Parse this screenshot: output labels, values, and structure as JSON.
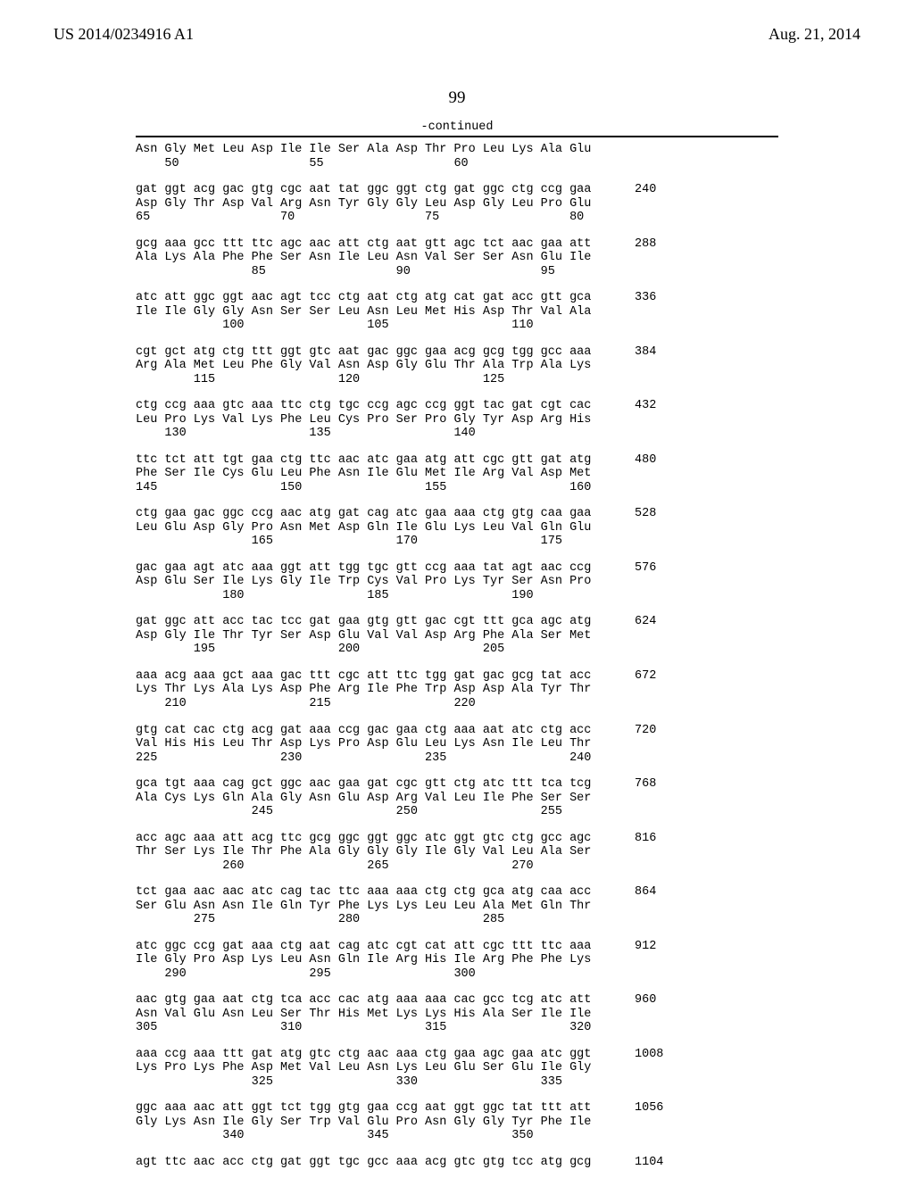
{
  "header": {
    "pub_number": "US 2014/0234916 A1",
    "pub_date": "Aug. 21, 2014"
  },
  "page_number": "99",
  "continued_label": "-continued",
  "blocks": [
    {
      "line1": "Asn Gly Met Leu Asp Ile Ile Ser Ala Asp Thr Pro Leu Lys Ala Glu",
      "line2": "    50                  55                  60",
      "end": ""
    },
    {
      "line1": "gat ggt acg gac gtg cgc aat tat ggc ggt ctg gat ggc ctg ccg gaa",
      "line2": "Asp Gly Thr Asp Val Arg Asn Tyr Gly Gly Leu Asp Gly Leu Pro Glu",
      "line3": "65                  70                  75                  80",
      "end": "240"
    },
    {
      "line1": "gcg aaa gcc ttt ttc agc aac att ctg aat gtt agc tct aac gaa att",
      "line2": "Ala Lys Ala Phe Phe Ser Asn Ile Leu Asn Val Ser Ser Asn Glu Ile",
      "line3": "                85                  90                  95",
      "end": "288"
    },
    {
      "line1": "atc att ggc ggt aac agt tcc ctg aat ctg atg cat gat acc gtt gca",
      "line2": "Ile Ile Gly Gly Asn Ser Ser Leu Asn Leu Met His Asp Thr Val Ala",
      "line3": "            100                 105                 110",
      "end": "336"
    },
    {
      "line1": "cgt gct atg ctg ttt ggt gtc aat gac ggc gaa acg gcg tgg gcc aaa",
      "line2": "Arg Ala Met Leu Phe Gly Val Asn Asp Gly Glu Thr Ala Trp Ala Lys",
      "line3": "        115                 120                 125",
      "end": "384"
    },
    {
      "line1": "ctg ccg aaa gtc aaa ttc ctg tgc ccg agc ccg ggt tac gat cgt cac",
      "line2": "Leu Pro Lys Val Lys Phe Leu Cys Pro Ser Pro Gly Tyr Asp Arg His",
      "line3": "    130                 135                 140",
      "end": "432"
    },
    {
      "line1": "ttc tct att tgt gaa ctg ttc aac atc gaa atg att cgc gtt gat atg",
      "line2": "Phe Ser Ile Cys Glu Leu Phe Asn Ile Glu Met Ile Arg Val Asp Met",
      "line3": "145                 150                 155                 160",
      "end": "480"
    },
    {
      "line1": "ctg gaa gac ggc ccg aac atg gat cag atc gaa aaa ctg gtg caa gaa",
      "line2": "Leu Glu Asp Gly Pro Asn Met Asp Gln Ile Glu Lys Leu Val Gln Glu",
      "line3": "                165                 170                 175",
      "end": "528"
    },
    {
      "line1": "gac gaa agt atc aaa ggt att tgg tgc gtt ccg aaa tat agt aac ccg",
      "line2": "Asp Glu Ser Ile Lys Gly Ile Trp Cys Val Pro Lys Tyr Ser Asn Pro",
      "line3": "            180                 185                 190",
      "end": "576"
    },
    {
      "line1": "gat ggc att acc tac tcc gat gaa gtg gtt gac cgt ttt gca agc atg",
      "line2": "Asp Gly Ile Thr Tyr Ser Asp Glu Val Val Asp Arg Phe Ala Ser Met",
      "line3": "        195                 200                 205",
      "end": "624"
    },
    {
      "line1": "aaa acg aaa gct aaa gac ttt cgc att ttc tgg gat gac gcg tat acc",
      "line2": "Lys Thr Lys Ala Lys Asp Phe Arg Ile Phe Trp Asp Asp Ala Tyr Thr",
      "line3": "    210                 215                 220",
      "end": "672"
    },
    {
      "line1": "gtg cat cac ctg acg gat aaa ccg gac gaa ctg aaa aat atc ctg acc",
      "line2": "Val His His Leu Thr Asp Lys Pro Asp Glu Leu Lys Asn Ile Leu Thr",
      "line3": "225                 230                 235                 240",
      "end": "720"
    },
    {
      "line1": "gca tgt aaa cag gct ggc aac gaa gat cgc gtt ctg atc ttt tca tcg",
      "line2": "Ala Cys Lys Gln Ala Gly Asn Glu Asp Arg Val Leu Ile Phe Ser Ser",
      "line3": "                245                 250                 255",
      "end": "768"
    },
    {
      "line1": "acc agc aaa att acg ttc gcg ggc ggt ggc atc ggt gtc ctg gcc agc",
      "line2": "Thr Ser Lys Ile Thr Phe Ala Gly Gly Gly Ile Gly Val Leu Ala Ser",
      "line3": "            260                 265                 270",
      "end": "816"
    },
    {
      "line1": "tct gaa aac aac atc cag tac ttc aaa aaa ctg ctg gca atg caa acc",
      "line2": "Ser Glu Asn Asn Ile Gln Tyr Phe Lys Lys Leu Leu Ala Met Gln Thr",
      "line3": "        275                 280                 285",
      "end": "864"
    },
    {
      "line1": "atc ggc ccg gat aaa ctg aat cag atc cgt cat att cgc ttt ttc aaa",
      "line2": "Ile Gly Pro Asp Lys Leu Asn Gln Ile Arg His Ile Arg Phe Phe Lys",
      "line3": "    290                 295                 300",
      "end": "912"
    },
    {
      "line1": "aac gtg gaa aat ctg tca acc cac atg aaa aaa cac gcc tcg atc att",
      "line2": "Asn Val Glu Asn Leu Ser Thr His Met Lys Lys His Ala Ser Ile Ile",
      "line3": "305                 310                 315                 320",
      "end": "960"
    },
    {
      "line1": "aaa ccg aaa ttt gat atg gtc ctg aac aaa ctg gaa agc gaa atc ggt",
      "line2": "Lys Pro Lys Phe Asp Met Val Leu Asn Lys Leu Glu Ser Glu Ile Gly",
      "line3": "                325                 330                 335",
      "end": "1008"
    },
    {
      "line1": "ggc aaa aac att ggt tct tgg gtg gaa ccg aat ggt ggc tat ttt att",
      "line2": "Gly Lys Asn Ile Gly Ser Trp Val Glu Pro Asn Gly Gly Tyr Phe Ile",
      "line3": "            340                 345                 350",
      "end": "1056"
    },
    {
      "line1": "agt ttc aac acc ctg gat ggt tgc gcc aaa acg gtc gtg tcc atg gcg",
      "line2": "",
      "line3": "",
      "end": "1104"
    }
  ]
}
